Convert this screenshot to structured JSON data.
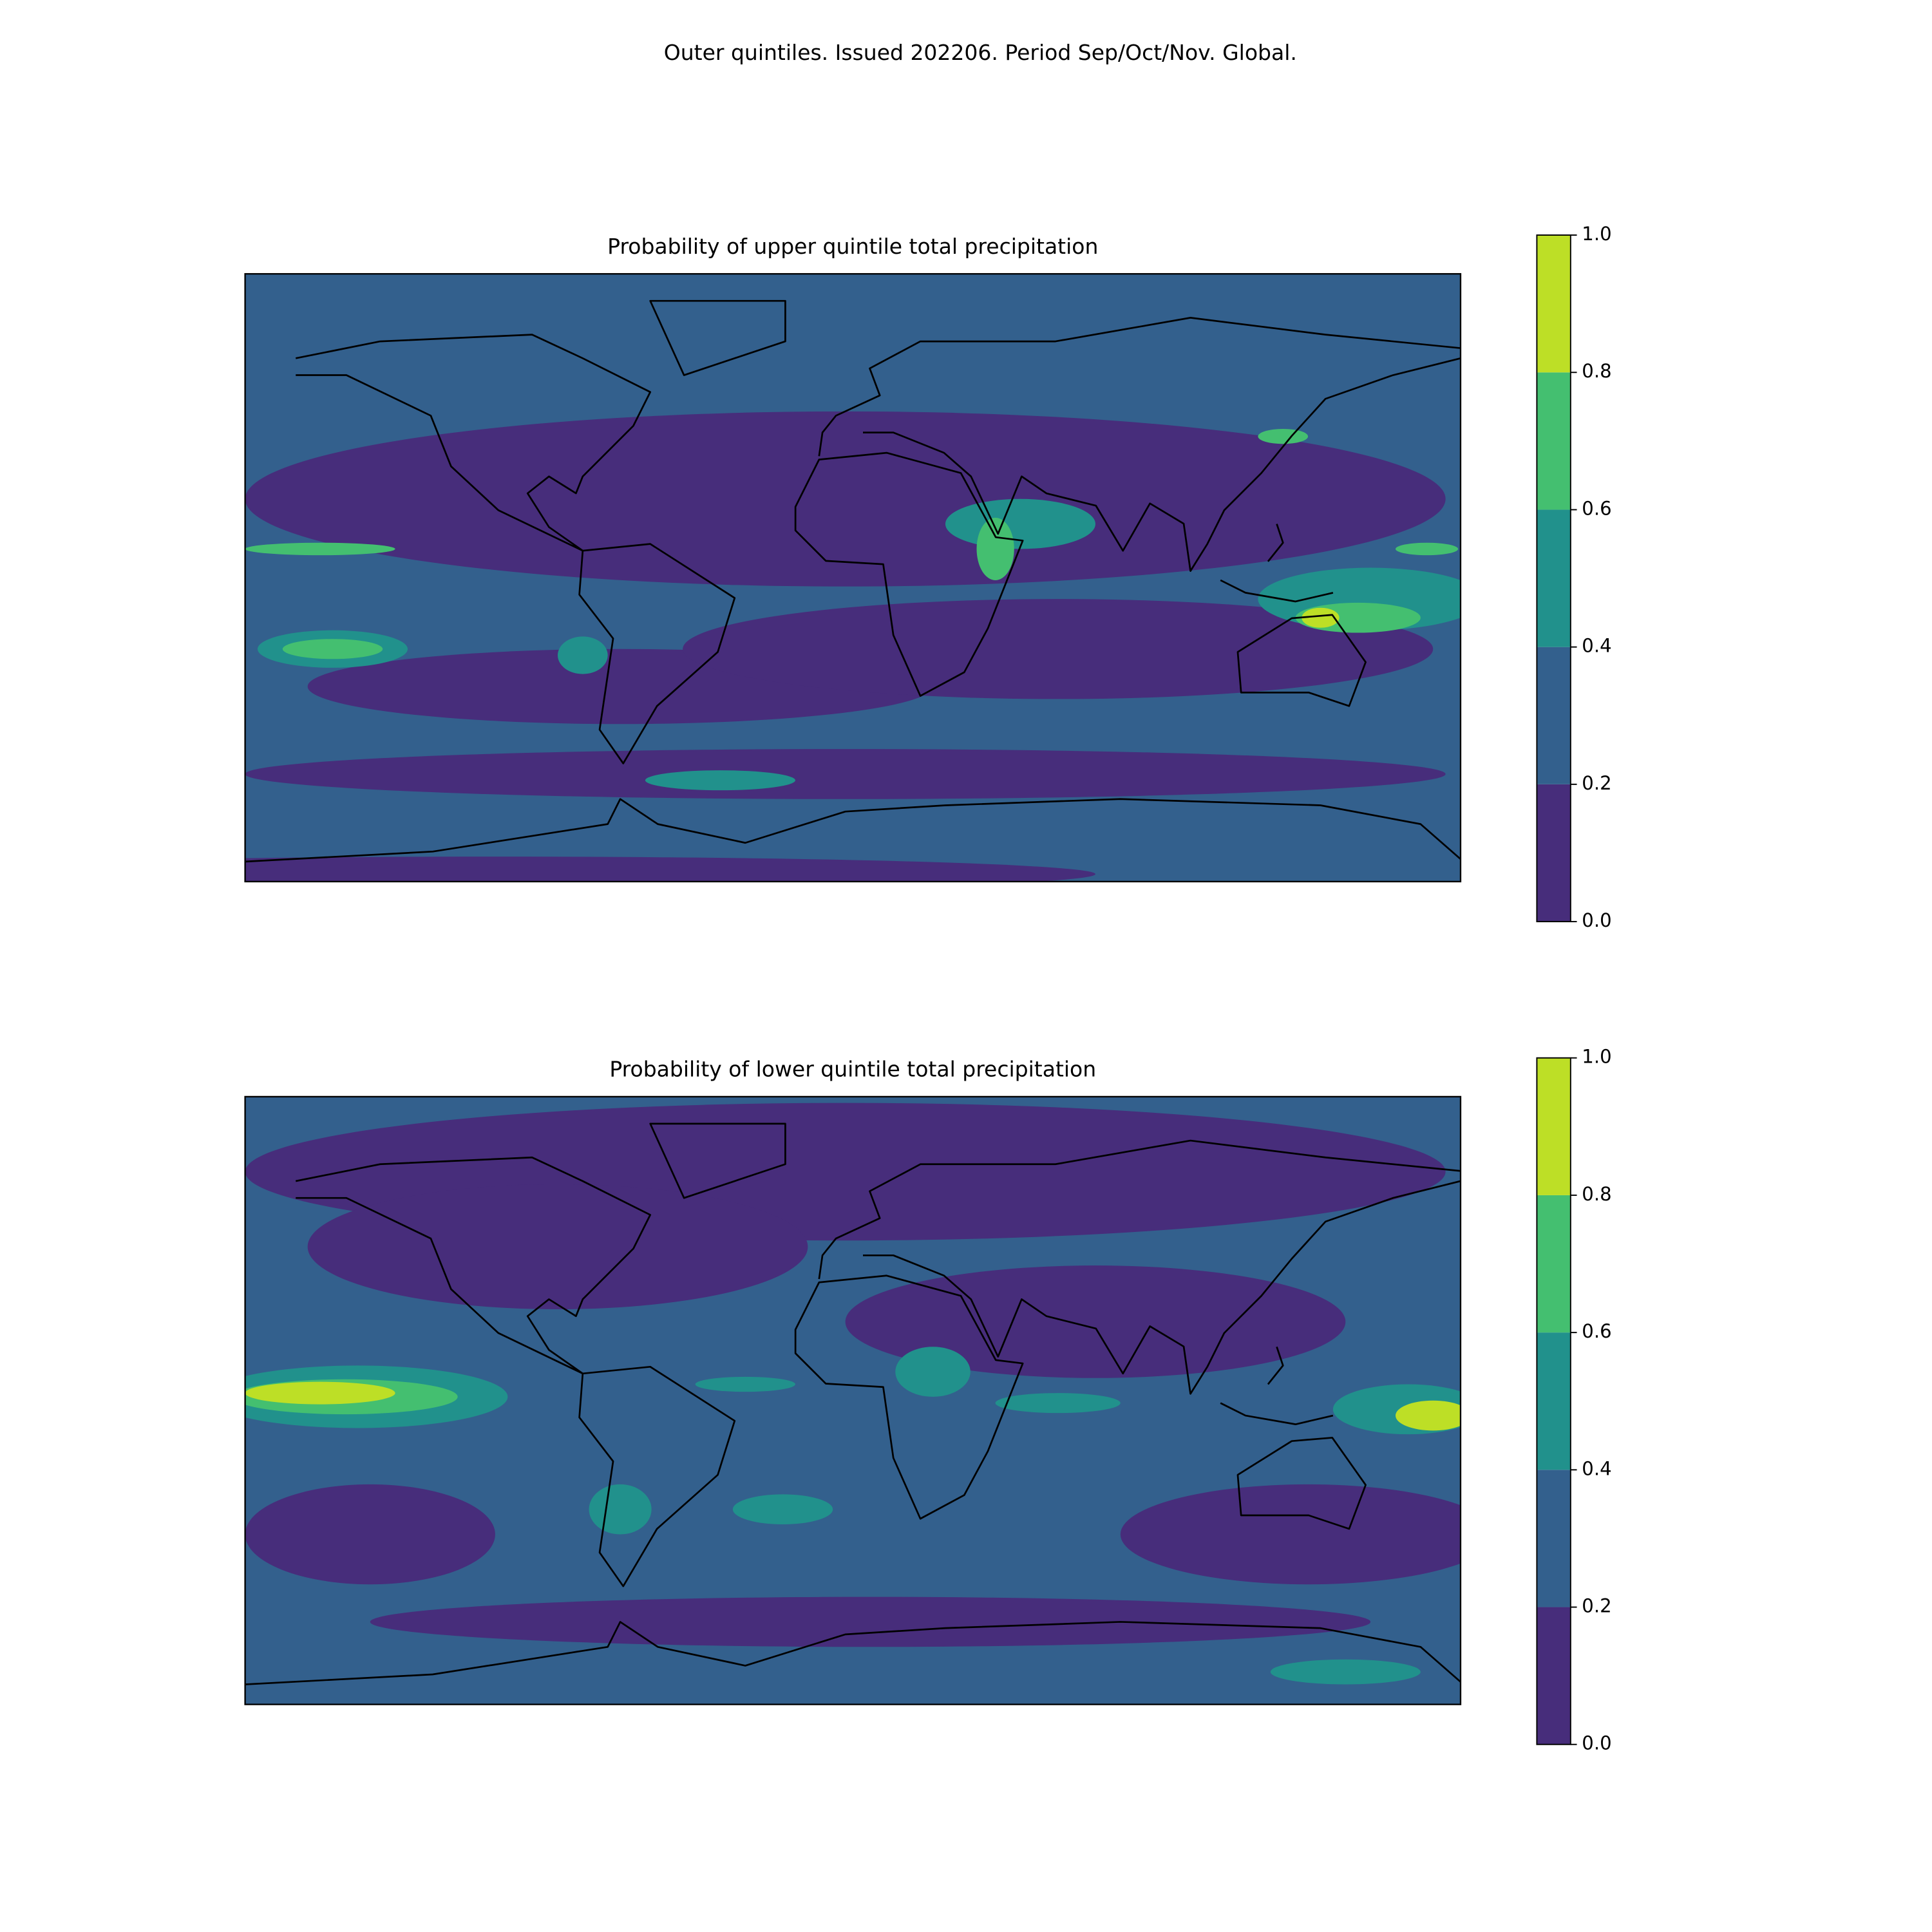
{
  "title": "Outer quintiles. Issued 202206. Period Sep/Oct/Nov. Global.",
  "chart_data": [
    {
      "type": "contour",
      "title": "Probability of upper quintile total precipitation",
      "clim": [
        0,
        1
      ],
      "cticks": [
        {
          "value": 0,
          "label": "0.0"
        },
        0.2,
        0.4,
        0.6,
        0.8,
        {
          "value": 1,
          "label": "1.0"
        }
      ],
      "colors": [
        "#472d7b",
        "#33608d",
        "#21918c",
        "#44bf70",
        "#bddf26"
      ]
    },
    {
      "type": "contour",
      "title": "Probability of lower quintile total precipitation",
      "clim": [
        0,
        1
      ],
      "cticks": [
        {
          "value": 0,
          "label": "0.0"
        },
        0.2,
        0.4,
        0.6,
        0.8,
        {
          "value": 1,
          "label": "1.0"
        }
      ],
      "colors": [
        "#472d7b",
        "#33608d",
        "#21918c",
        "#44bf70",
        "#bddf26"
      ]
    }
  ]
}
